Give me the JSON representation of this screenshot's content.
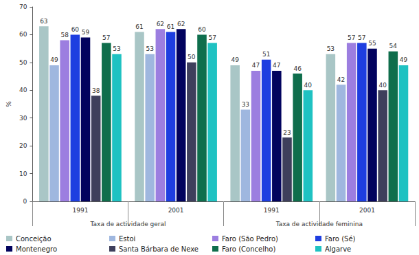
{
  "chart_data": {
    "type": "bar",
    "y_label": "%",
    "categories": [
      "1991",
      "2001",
      "1991",
      "2001"
    ],
    "category_groups": [
      "Taxa de actividade geral",
      "Taxa de actividade geral",
      "Taxa de actividade feminina",
      "Taxa de actividade feminina"
    ],
    "series": [
      {
        "name": "Conceição",
        "color": "#a9c6c6",
        "values": [
          63,
          61,
          49,
          53
        ]
      },
      {
        "name": "Estoi",
        "color": "#9fb7df",
        "values": [
          49,
          53,
          33,
          42
        ]
      },
      {
        "name": "Faro (São Pedro)",
        "color": "#9c7ee0",
        "values": [
          58,
          62,
          47,
          57
        ]
      },
      {
        "name": "Faro (Sé)",
        "color": "#1e3ee0",
        "values": [
          60,
          61,
          51,
          57
        ]
      },
      {
        "name": "Montenegro",
        "color": "#02035e",
        "values": [
          59,
          62,
          47,
          55
        ]
      },
      {
        "name": "Santa Bárbara de Nexe",
        "color": "#3e3f5c",
        "values": [
          38,
          50,
          23,
          40
        ]
      },
      {
        "name": "Faro (Concelho)",
        "color": "#0f6e4c",
        "values": [
          57,
          60,
          46,
          54
        ]
      },
      {
        "name": "Algarve",
        "color": "#1fc2c2",
        "values": [
          53,
          57,
          40,
          49
        ]
      }
    ],
    "ylim": [
      0,
      70
    ],
    "yticks": [
      0,
      10,
      20,
      30,
      40,
      50,
      60,
      70
    ],
    "grid": false,
    "data_labels": true,
    "legend": "bottom"
  }
}
